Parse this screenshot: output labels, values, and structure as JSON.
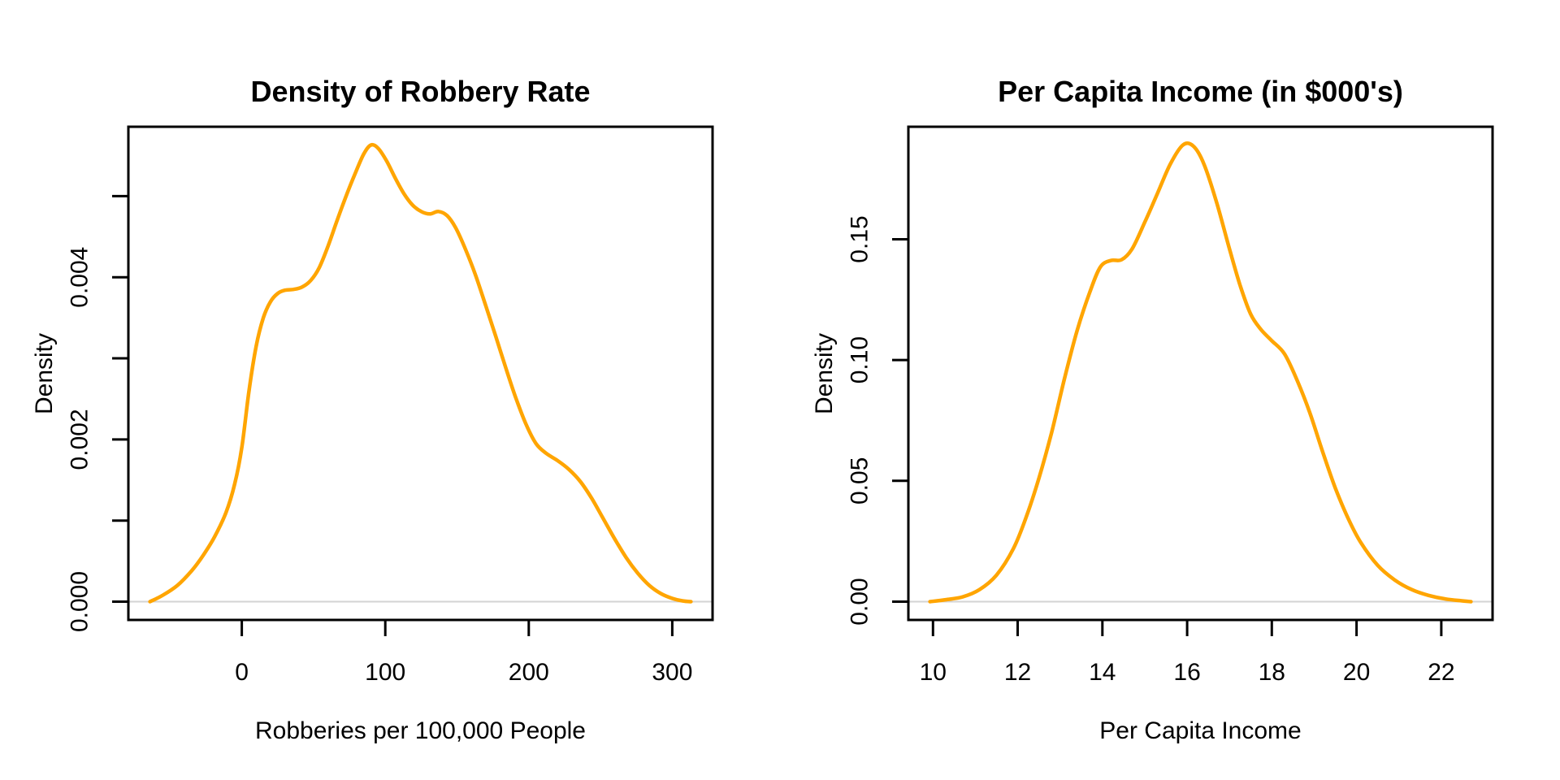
{
  "figure": {
    "background": "#FFFFFF",
    "text_color": "#000000"
  },
  "chart_data": [
    {
      "type": "line",
      "title": "Density of Robbery Rate",
      "xlabel": "Robberies per 100,000 People",
      "ylabel": "Density",
      "curve_color": "#FFA500",
      "axis_color": "#000000",
      "zero_line_color": "#D3D3D3",
      "grid": "off",
      "legend_position": "none",
      "xlim": [
        -64,
        313
      ],
      "ylim": [
        0,
        0.00563
      ],
      "x_ticks": {
        "values": [
          0,
          100,
          200,
          300
        ],
        "labels": [
          "0",
          "100",
          "200",
          "300"
        ]
      },
      "y_ticks": {
        "values": [
          0,
          0.001,
          0.002,
          0.003,
          0.004,
          0.005
        ],
        "labels": [
          "0.000",
          "",
          "0.002",
          "",
          "0.004",
          ""
        ]
      },
      "series": [
        {
          "name": "kernel-density-robbery-rate",
          "x": [
            -64,
            -55,
            -45,
            -35,
            -27,
            -19,
            -11,
            -5,
            0,
            5,
            10,
            15,
            20,
            25,
            30,
            36,
            42,
            48,
            54,
            60,
            66,
            72,
            79,
            85,
            90,
            95,
            101,
            107,
            113,
            119,
            125,
            131,
            137,
            143,
            149,
            156,
            163,
            170,
            177,
            184,
            191,
            198,
            205,
            212,
            220,
            228,
            236,
            244,
            252,
            260,
            268,
            276,
            284,
            292,
            300,
            307,
            313
          ],
          "y": [
            0,
            8e-05,
            0.0002,
            0.00038,
            0.00057,
            0.0008,
            0.0011,
            0.00145,
            0.0019,
            0.0026,
            0.00315,
            0.0035,
            0.0037,
            0.0038,
            0.00384,
            0.00385,
            0.00388,
            0.00396,
            0.00412,
            0.00438,
            0.00468,
            0.00497,
            0.00528,
            0.00552,
            0.00563,
            0.00559,
            0.00543,
            0.00522,
            0.00503,
            0.00489,
            0.00481,
            0.00478,
            0.00481,
            0.00476,
            0.00461,
            0.00434,
            0.00402,
            0.00365,
            0.00327,
            0.00288,
            0.00251,
            0.00219,
            0.00195,
            0.00183,
            0.00174,
            0.00163,
            0.00148,
            0.00127,
            0.00102,
            0.00077,
            0.00054,
            0.00035,
            0.0002,
            0.0001,
            4e-05,
            1e-05,
            0
          ]
        }
      ]
    },
    {
      "type": "line",
      "title": "Per Capita Income (in $000's)",
      "xlabel": "Per Capita Income",
      "ylabel": "Density",
      "curve_color": "#FFA500",
      "axis_color": "#000000",
      "zero_line_color": "#D3D3D3",
      "grid": "off",
      "legend_position": "none",
      "xlim": [
        9.93,
        22.7
      ],
      "ylim": [
        0,
        0.189
      ],
      "x_ticks": {
        "values": [
          10,
          12,
          14,
          16,
          18,
          20,
          22
        ],
        "labels": [
          "10",
          "12",
          "14",
          "16",
          "18",
          "20",
          "22"
        ]
      },
      "y_ticks": {
        "values": [
          0,
          0.05,
          0.1,
          0.15
        ],
        "labels": [
          "0.00",
          "0.05",
          "0.10",
          "0.15"
        ]
      },
      "series": [
        {
          "name": "kernel-density-per-capita-income",
          "x": [
            9.93,
            10.3,
            10.7,
            11.1,
            11.5,
            11.9,
            12.2,
            12.5,
            12.8,
            13.1,
            13.4,
            13.7,
            13.95,
            14.2,
            14.45,
            14.7,
            15.0,
            15.3,
            15.6,
            15.9,
            16.15,
            16.4,
            16.7,
            17.0,
            17.25,
            17.5,
            17.75,
            18.0,
            18.3,
            18.6,
            18.9,
            19.2,
            19.5,
            19.8,
            20.1,
            20.5,
            20.9,
            21.3,
            21.7,
            22.1,
            22.45,
            22.7
          ],
          "y": [
            0,
            0.0008,
            0.002,
            0.005,
            0.011,
            0.022,
            0.035,
            0.051,
            0.07,
            0.092,
            0.112,
            0.128,
            0.1385,
            0.1412,
            0.1415,
            0.146,
            0.157,
            0.169,
            0.181,
            0.189,
            0.1885,
            0.181,
            0.165,
            0.146,
            0.131,
            0.119,
            0.1125,
            0.108,
            0.1025,
            0.0915,
            0.078,
            0.062,
            0.047,
            0.0345,
            0.0245,
            0.015,
            0.009,
            0.005,
            0.0026,
            0.0011,
            0.0004,
            0
          ]
        }
      ]
    }
  ]
}
